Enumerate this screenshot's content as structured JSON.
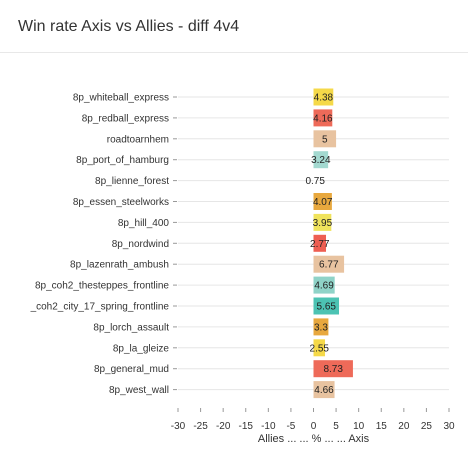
{
  "title": "Win rate Axis vs Allies - diff 4v4",
  "chart_data": {
    "type": "bar",
    "orientation": "horizontal",
    "title": "Win rate Axis vs Allies - diff 4v4",
    "xlabel": "Allies ... ... % ... ... Axis",
    "ylabel": "",
    "xlim": [
      -30,
      30
    ],
    "xticks": [
      -30,
      -25,
      -20,
      -15,
      -10,
      -5,
      0,
      5,
      10,
      15,
      20,
      25,
      30
    ],
    "grid": true,
    "legend": "none",
    "categories": [
      "8p_whiteball_express",
      "8p_redball_express",
      "roadtoarnhem",
      "8p_port_of_hamburg",
      "8p_lienne_forest",
      "8p_essen_steelworks",
      "8p_hill_400",
      "8p_nordwind",
      "8p_lazenrath_ambush",
      "8p_coh2_thesteppes_frontline",
      "_coh2_city_17_spring_frontline",
      "8p_lorch_assault",
      "8p_la_gleize",
      "8p_general_mud",
      "8p_west_wall"
    ],
    "values": [
      4.38,
      4.16,
      5,
      3.24,
      0.75,
      4.07,
      3.95,
      2.77,
      6.77,
      4.69,
      5.65,
      3.3,
      2.55,
      8.73,
      4.66
    ],
    "labels": [
      "4.38",
      "4.16",
      "5",
      "3.24",
      "0.75",
      "4.07",
      "3.95",
      "2.77",
      "6.77",
      "4.69",
      "5.65",
      "3.3",
      "2.55",
      "8.73",
      "4.66"
    ],
    "colors": [
      "#f5d949",
      "#ee6a59",
      "#e8c3a0",
      "#a3d9d0",
      "#ffffff",
      "#e8a83e",
      "#f0e35c",
      "#ee5e52",
      "#e8c3a0",
      "#8fd3c8",
      "#4cc3b3",
      "#e8a83e",
      "#f5d949",
      "#ee6a59",
      "#e8c3a0"
    ]
  }
}
